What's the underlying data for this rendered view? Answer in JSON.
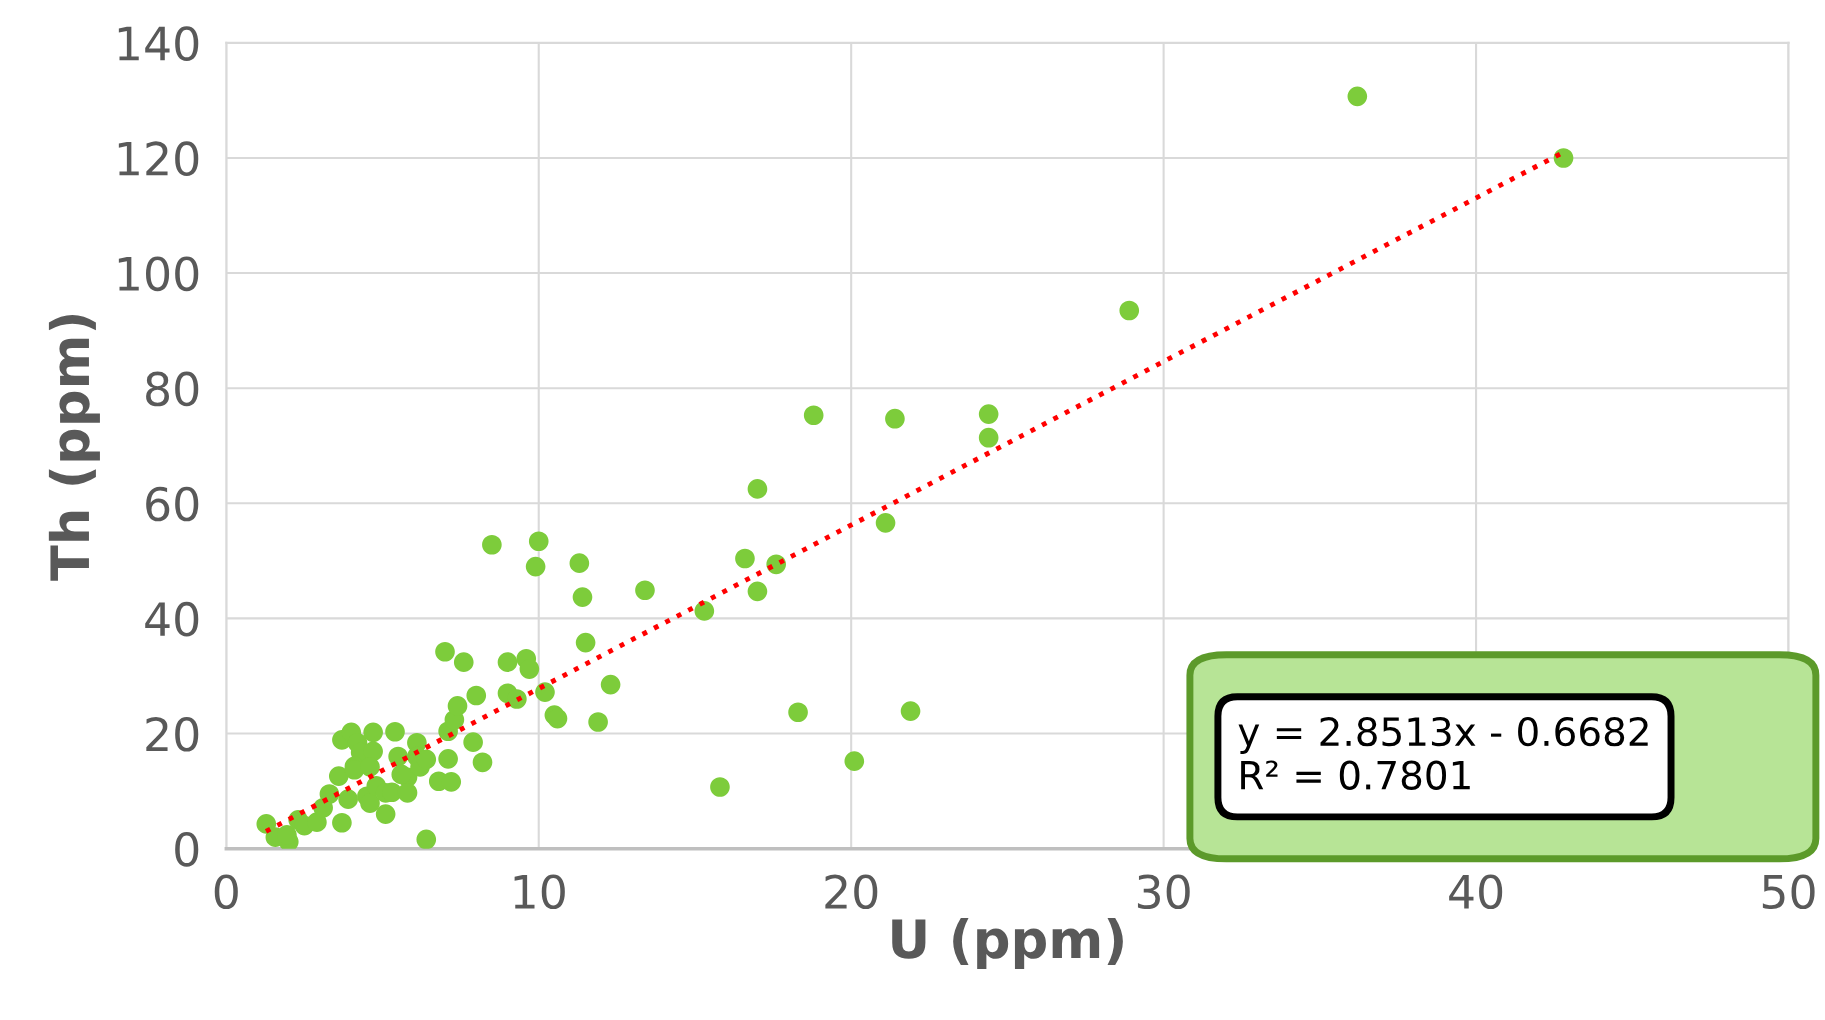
{
  "chart_data": {
    "type": "scatter",
    "xlabel": "U (ppm)",
    "ylabel": "Th (ppm)",
    "xlim": [
      0,
      50
    ],
    "xticks": [
      0,
      10,
      20,
      30,
      40,
      50
    ],
    "ylim": [
      0,
      140
    ],
    "yticks": [
      0,
      20,
      40,
      60,
      80,
      100,
      120,
      140
    ],
    "grid": true,
    "legend": false,
    "marker": "circle",
    "series": [
      {
        "color": "#7dcc3b",
        "x": [
          1.28,
          1.57,
          2.0,
          1.94,
          2.3,
          2.5,
          2.9,
          3.1,
          3.3,
          3.7,
          3.9,
          3.7,
          4.0,
          4.2,
          4.3,
          4.1,
          3.6,
          4.1,
          4.5,
          4.6,
          4.7,
          4.7,
          4.6,
          4.8,
          5.1,
          5.3,
          5.1,
          5.4,
          5.5,
          5.8,
          5.6,
          5.8,
          6.1,
          6.1,
          6.2,
          6.4,
          6.4,
          6.8,
          7.2,
          7.1,
          7.1,
          7.3,
          7.4,
          8.0,
          7.9,
          8.2,
          9.0,
          9.3,
          10.2,
          10.5,
          10.6,
          11.9,
          7.0,
          7.6,
          8.5,
          9.0,
          9.6,
          9.7,
          9.9,
          10.0,
          11.3,
          11.4,
          11.5,
          12.3,
          13.4,
          15.3,
          15.8,
          16.6,
          17.0,
          17.0,
          17.6,
          18.3,
          18.8,
          20.1,
          21.1,
          21.4,
          21.9,
          24.4,
          24.4,
          28.9,
          36.2,
          42.8
        ],
        "values": [
          4.3,
          2.0,
          1.2,
          2.4,
          5.0,
          4.0,
          4.6,
          7.1,
          9.5,
          4.5,
          8.6,
          18.9,
          20.2,
          18.4,
          16.7,
          14.3,
          12.6,
          13.7,
          9.1,
          7.9,
          20.2,
          16.9,
          14.2,
          10.9,
          9.7,
          9.8,
          6.0,
          20.3,
          16.0,
          12.4,
          12.9,
          9.7,
          18.4,
          16.0,
          14.2,
          15.5,
          1.6,
          11.7,
          11.6,
          15.6,
          20.4,
          22.4,
          24.8,
          26.6,
          18.5,
          15.0,
          27.0,
          26.0,
          27.2,
          23.2,
          22.6,
          22.0,
          34.2,
          32.4,
          52.8,
          32.4,
          33.0,
          31.2,
          49.0,
          53.4,
          49.6,
          43.7,
          35.8,
          28.5,
          44.9,
          41.3,
          10.7,
          50.4,
          62.5,
          44.7,
          49.4,
          23.7,
          75.3,
          15.2,
          56.6,
          74.7,
          23.9,
          75.5,
          71.4,
          93.5,
          130.7,
          120.0
        ]
      },
      {
        "type": "line",
        "color": "#ff0000",
        "line_style": "dotted",
        "marker": "none",
        "x": [
          1.27,
          42.8
        ],
        "values": [
          3,
          121
        ]
      }
    ],
    "annotations": [
      "y = 2.8513x - 0.6682\nR² = 0.7801"
    ]
  }
}
